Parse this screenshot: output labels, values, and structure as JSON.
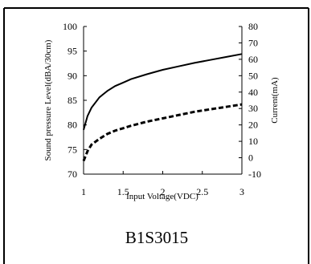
{
  "caption": "B1S3015",
  "chart_data": {
    "type": "line",
    "xlabel": "Input Voltage(VDC)",
    "ylabel_left": "Sound pressure Level(dBA/30cm)",
    "ylabel_right": "Current(mA)",
    "xlim": [
      1,
      3
    ],
    "ylim_left": [
      70,
      100
    ],
    "ylim_right": [
      -10,
      80
    ],
    "x_ticks": [
      1,
      1.5,
      2,
      2.5,
      3
    ],
    "x_tick_labels": [
      "1",
      "1.5",
      "2",
      "2.5",
      "3"
    ],
    "y_left_ticks": [
      70,
      75,
      80,
      85,
      90,
      95,
      100
    ],
    "y_left_tick_labels": [
      "70",
      "75",
      "80",
      "85",
      "90",
      "95",
      "100"
    ],
    "y_right_ticks": [
      -10,
      0,
      10,
      20,
      30,
      40,
      50,
      60,
      70,
      80
    ],
    "y_right_tick_labels": [
      "-10",
      "0",
      "10",
      "20",
      "30",
      "40",
      "50",
      "60",
      "70",
      "80"
    ],
    "grid": false,
    "legend": "none",
    "series": [
      {
        "axis": "left",
        "style": "solid",
        "color": "#000000",
        "x": [
          1.0,
          1.05,
          1.1,
          1.2,
          1.3,
          1.4,
          1.5,
          1.6,
          1.8,
          2.0,
          2.2,
          2.4,
          2.6,
          2.8,
          3.0
        ],
        "y": [
          79.0,
          81.8,
          83.5,
          85.6,
          86.9,
          87.9,
          88.6,
          89.3,
          90.3,
          91.2,
          91.9,
          92.6,
          93.2,
          93.8,
          94.4
        ]
      },
      {
        "axis": "right",
        "style": "dashed",
        "color": "#000000",
        "x": [
          1.0,
          1.05,
          1.1,
          1.2,
          1.3,
          1.4,
          1.5,
          1.6,
          1.8,
          2.0,
          2.2,
          2.4,
          2.6,
          2.8,
          3.0
        ],
        "y": [
          -2,
          4,
          8,
          11.5,
          14.5,
          16.5,
          18,
          19.5,
          22,
          24,
          26,
          28,
          29.5,
          31,
          32.5
        ]
      }
    ]
  }
}
